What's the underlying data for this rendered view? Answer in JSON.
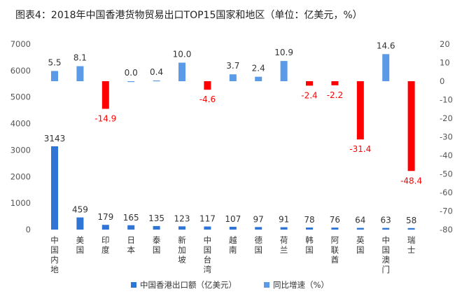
{
  "chart_data": {
    "type": "bar",
    "title": "图表4：2018年中国香港货物贸易出口TOP15国家和地区（单位：亿美元，%）",
    "categories": [
      "中国内地",
      "美国",
      "印度",
      "日本",
      "泰国",
      "新加坡",
      "中国台湾",
      "越南",
      "德国",
      "荷兰",
      "韩国",
      "阿联酋",
      "英国",
      "中国澳门",
      "瑞士"
    ],
    "series": [
      {
        "name": "中国香港出口额（亿美元）",
        "axis": "left",
        "color": "#2e75d6",
        "values": [
          3143,
          459,
          179,
          165,
          135,
          123,
          117,
          107,
          97,
          91,
          78,
          76,
          64,
          63,
          58
        ],
        "labels": [
          "3143",
          "459",
          "179",
          "165",
          "135",
          "123",
          "117",
          "107",
          "97",
          "91",
          "78",
          "76",
          "64",
          "63",
          "58"
        ]
      },
      {
        "name": "同比增速（%）",
        "axis": "right",
        "color": "#5a9ae6",
        "negative_color": "#ff0000",
        "values": [
          5.5,
          8.1,
          -14.9,
          0.0,
          0.4,
          10.0,
          -4.6,
          3.7,
          2.4,
          10.9,
          -2.4,
          -2.2,
          -31.4,
          14.6,
          -48.4
        ],
        "labels": [
          "5.5",
          "8.1",
          "-14.9",
          "0.0",
          "0.4",
          "10.0",
          "-4.6",
          "3.7",
          "2.4",
          "10.9",
          "-2.4",
          "-2.2",
          "-31.4",
          "14.6",
          "-48.4"
        ]
      }
    ],
    "y_left": {
      "min": 0,
      "max": 7000,
      "step": 1000,
      "ticks": [
        "0",
        "1000",
        "2000",
        "3000",
        "4000",
        "5000",
        "6000",
        "7000"
      ]
    },
    "y_right": {
      "min": -80,
      "max": 20,
      "step": 10,
      "ticks": [
        "-80",
        "-70",
        "-60",
        "-50",
        "-40",
        "-30",
        "-20",
        "-10",
        "0",
        "10",
        "20"
      ]
    },
    "grid": false,
    "legend_position": "bottom"
  }
}
